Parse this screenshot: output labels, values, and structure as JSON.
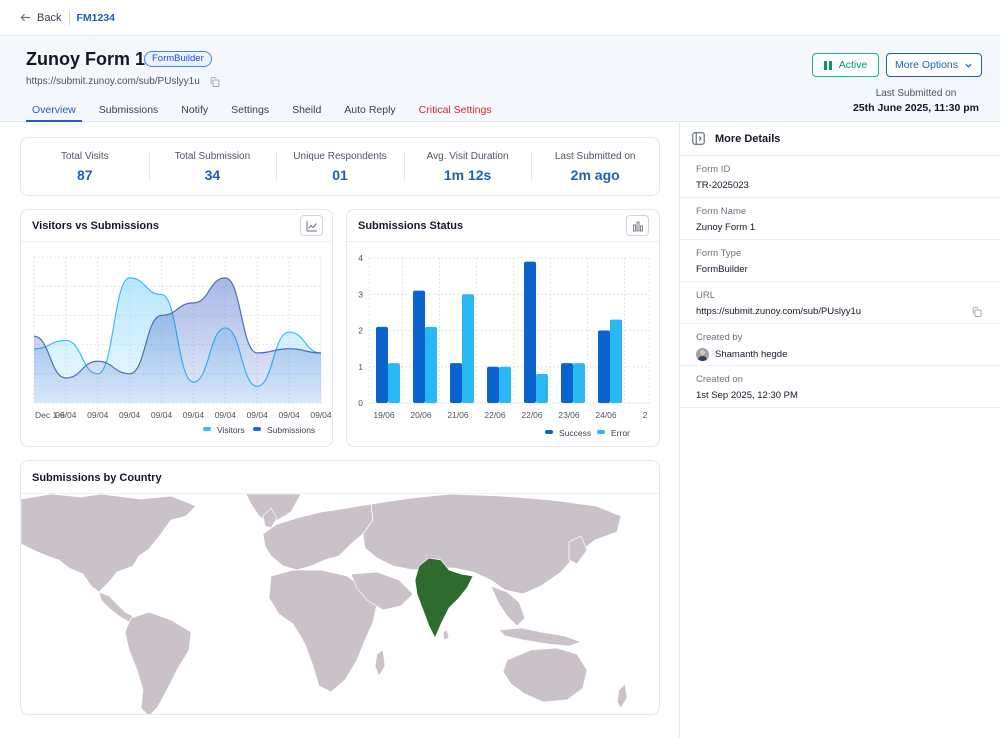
{
  "topbar": {
    "back_label": "Back",
    "form_id": "FM1234"
  },
  "header": {
    "title": "Zunoy Form 1",
    "badge": "FormBuilder",
    "url": "https://submit.zunoy.com/sub/PUslyy1u",
    "tabs": [
      {
        "label": "Overview",
        "active": true
      },
      {
        "label": "Submissions"
      },
      {
        "label": "Notify"
      },
      {
        "label": "Settings"
      },
      {
        "label": "Sheild"
      },
      {
        "label": "Auto Reply"
      },
      {
        "label": "Critical Settings",
        "critical": true
      }
    ],
    "status_button": "Active",
    "more_options": "More Options",
    "last_submitted_label": "Last Submitted on",
    "last_submitted_value": "25th June 2025, 11:30 pm"
  },
  "stats": [
    {
      "label": "Total Visits",
      "value": "87"
    },
    {
      "label": "Total Submission",
      "value": "34"
    },
    {
      "label": "Unique Respondents",
      "value": "01"
    },
    {
      "label": "Avg. Visit Duration",
      "value": "1m 12s"
    },
    {
      "label": "Last Submitted on",
      "value": "2m ago"
    }
  ],
  "visitors_chart": {
    "title": "Visitors vs Submissions",
    "icon": "line-chart-icon"
  },
  "status_chart": {
    "title": "Submissions Status",
    "icon": "bar-chart-icon"
  },
  "country_map": {
    "title": "Submissions by Country",
    "highlighted": "India",
    "land_color": "#cbc1c9",
    "highlight_color": "#2e6b2e"
  },
  "chart_data": [
    {
      "type": "area",
      "categories": [
        "Dec 1-6",
        "09/04",
        "09/04",
        "09/04",
        "09/04",
        "09/04",
        "09/04",
        "09/04",
        "09/04",
        "09/04"
      ],
      "series": [
        {
          "name": "Visitors",
          "color": "#38bdf8",
          "values": [
            1.3,
            1.5,
            0.7,
            3.0,
            2.6,
            0.5,
            1.8,
            0.4,
            1.7,
            1.2
          ]
        },
        {
          "name": "Submissions",
          "color": "#2563eb",
          "values": [
            1.6,
            0.6,
            1.0,
            0.7,
            2.1,
            2.4,
            3.0,
            1.2,
            1.3,
            1.2
          ]
        }
      ],
      "ylim": [
        0,
        3.5
      ],
      "grid": true,
      "legend": "bottom"
    },
    {
      "type": "bar",
      "categories": [
        "19/06",
        "20/06",
        "21/06",
        "22/06",
        "22/06",
        "23/06",
        "24/06"
      ],
      "extra_tick": "2",
      "series": [
        {
          "name": "Success",
          "color": "#0b63ce",
          "values": [
            2.1,
            3.1,
            1.1,
            1.0,
            3.9,
            1.1,
            2.0
          ]
        },
        {
          "name": "Error",
          "color": "#2ab7f5",
          "values": [
            1.1,
            2.1,
            3.0,
            1.0,
            0.8,
            1.1,
            2.3
          ]
        }
      ],
      "yticks": [
        "0",
        "1",
        "2",
        "3",
        "4"
      ],
      "ylim": [
        0,
        4
      ],
      "grid": true,
      "legend": "bottom"
    }
  ],
  "details": {
    "title": "More Details",
    "rows": [
      {
        "label": "Form ID",
        "value": "TR-2025023"
      },
      {
        "label": "Form Name",
        "value": "Zunoy Form 1"
      },
      {
        "label": "Form Type",
        "value": "FormBuilder"
      },
      {
        "label": "URL",
        "value": "https://submit.zunoy.com/sub/PUslyy1u"
      },
      {
        "label": "Created by",
        "value": "Shamanth hegde"
      },
      {
        "label": "Created on",
        "value": "1st Sep 2025, 12:30 PM"
      }
    ]
  }
}
